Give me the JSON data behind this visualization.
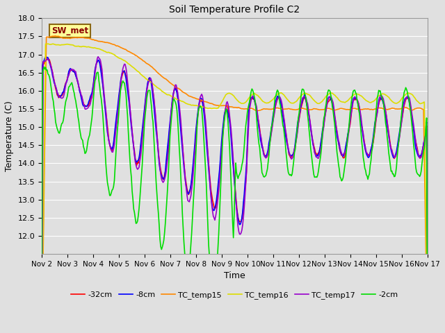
{
  "title": "Soil Temperature Profile C2",
  "xlabel": "Time",
  "ylabel": "Temperature (C)",
  "ylim": [
    11.5,
    18.0
  ],
  "xlim": [
    0,
    15
  ],
  "yticks": [
    12.0,
    12.5,
    13.0,
    13.5,
    14.0,
    14.5,
    15.0,
    15.5,
    16.0,
    16.5,
    17.0,
    17.5,
    18.0
  ],
  "xtick_labels": [
    "Nov 2",
    "Nov 3",
    "Nov 4",
    "Nov 5",
    "Nov 6",
    "Nov 7",
    "Nov 8",
    "Nov 9",
    "Nov 10",
    "Nov 11",
    "Nov 12",
    "Nov 13",
    "Nov 14",
    "Nov 15",
    "Nov 16",
    "Nov 17"
  ],
  "background_color": "#e0e0e0",
  "plot_bg_color": "#e0e0e0",
  "grid_color": "#ffffff",
  "sw_met_box_color": "#ffff99",
  "sw_met_text_color": "#8b0000",
  "sw_met_box_edge": "#8b6914",
  "lines": {
    "neg32cm": {
      "color": "#ff0000",
      "label": "-32cm",
      "lw": 1.2
    },
    "neg8cm": {
      "color": "#0000ff",
      "label": "-8cm",
      "lw": 1.2
    },
    "neg2cm": {
      "color": "#00dd00",
      "label": "-2cm",
      "lw": 1.2
    },
    "tc15": {
      "color": "#ff8800",
      "label": "TC_temp15",
      "lw": 1.2
    },
    "tc16": {
      "color": "#dddd00",
      "label": "TC_temp16",
      "lw": 1.2
    },
    "tc17": {
      "color": "#9900cc",
      "label": "TC_temp17",
      "lw": 1.2
    }
  },
  "n_points": 500
}
